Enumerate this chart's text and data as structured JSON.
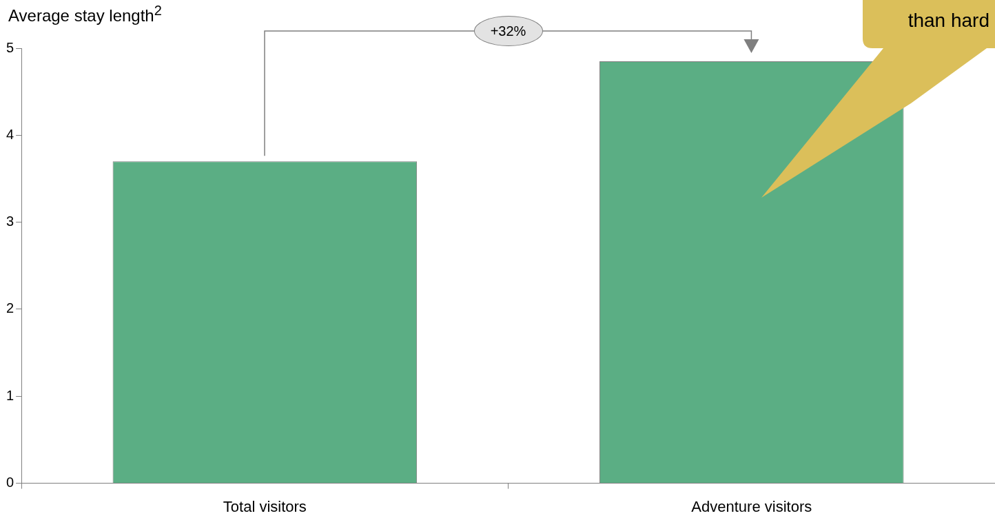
{
  "chart_data": {
    "type": "bar",
    "ylabel": "Average stay length$^{2}$",
    "categories": [
      "Total visitors",
      "Adventure visitors"
    ],
    "values": [
      3.7,
      4.85
    ],
    "color": "#5bae84",
    "ylim": [
      0,
      5
    ],
    "yticks": [
      0,
      1,
      2,
      3,
      4,
      5
    ],
    "grid": false,
    "legend": false,
    "annotations": [
      "+32%",
      "than hard"
    ]
  }
}
